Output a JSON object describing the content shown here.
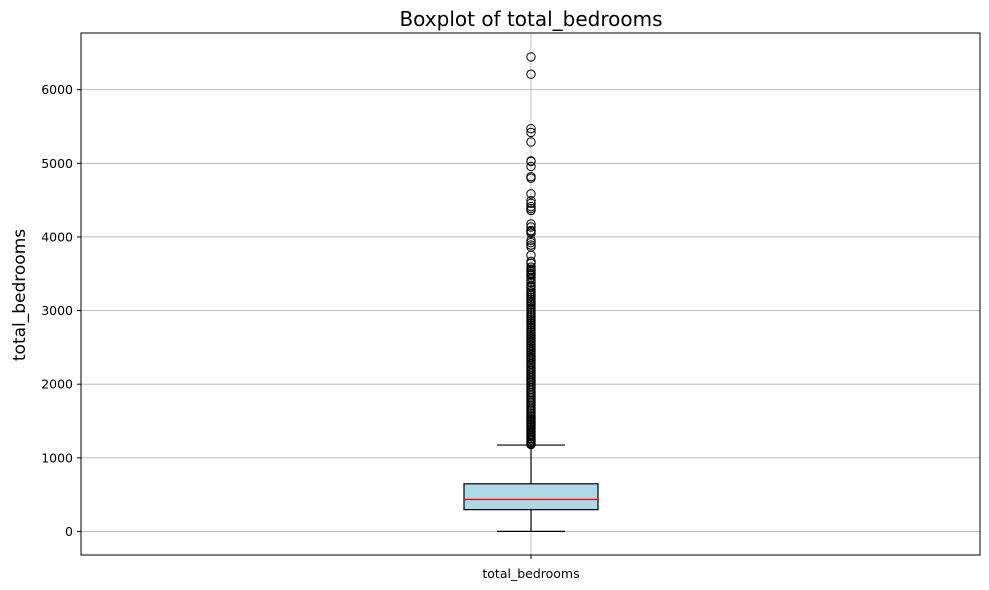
{
  "chart_data": {
    "type": "boxplot",
    "title": "Boxplot of total_bedrooms",
    "xlabel": "",
    "ylabel": "total_bedrooms",
    "categories": [
      "total_bedrooms"
    ],
    "ylim": [
      -320,
      6770
    ],
    "yticks": [
      0,
      1000,
      2000,
      3000,
      4000,
      5000,
      6000
    ],
    "ytick_labels": [
      "0",
      "1000",
      "2000",
      "3000",
      "4000",
      "5000",
      "6000"
    ],
    "grid": true,
    "box": {
      "whisker_low": 1,
      "q1": 296,
      "median": 435,
      "q3": 647,
      "whisker_high": 1173
    },
    "outliers": [
      6445,
      6210,
      5471,
      5419,
      5290,
      5033,
      5026,
      4957,
      4819,
      4798,
      4585,
      4492,
      4457,
      4413,
      4386,
      4360,
      4176,
      4135,
      4086,
      4072,
      4049,
      3954,
      3923,
      3890,
      3864,
      3751,
      3668,
      3641,
      3590,
      3561,
      3545,
      3525,
      3504,
      3487,
      3479,
      3452,
      3416,
      3382,
      3345,
      3327,
      3312,
      3282,
      3255,
      3231,
      3204,
      3181,
      3155,
      3130,
      3108,
      3082,
      3058,
      3031,
      3008,
      2981,
      2955,
      2930,
      2905,
      2880,
      2856,
      2830,
      2806,
      2781,
      2757,
      2731,
      2707,
      2683,
      2658,
      2634,
      2610,
      2586,
      2561,
      2537,
      2513,
      2489,
      2465,
      2441,
      2417,
      2393,
      2369,
      2346,
      2322,
      2298,
      2275,
      2251,
      2228,
      2204,
      2181,
      2158,
      2135,
      2112,
      2089,
      2066,
      2043,
      2020,
      1998,
      1975,
      1952,
      1930,
      1908,
      1885,
      1863,
      1841,
      1819,
      1797,
      1775,
      1753,
      1731,
      1709,
      1688,
      1666,
      1645,
      1624,
      1603,
      1582,
      1561,
      1540,
      1519,
      1499,
      1478,
      1458,
      1438,
      1418,
      1398,
      1378,
      1358,
      1339,
      1320,
      1301,
      1282,
      1263,
      1245,
      1227,
      1209,
      1192,
      1180
    ],
    "colors": {
      "box_fill": "#add8e6",
      "median_line": "#ff0000",
      "grid": "#b0b0b0",
      "axis": "#000000"
    }
  }
}
